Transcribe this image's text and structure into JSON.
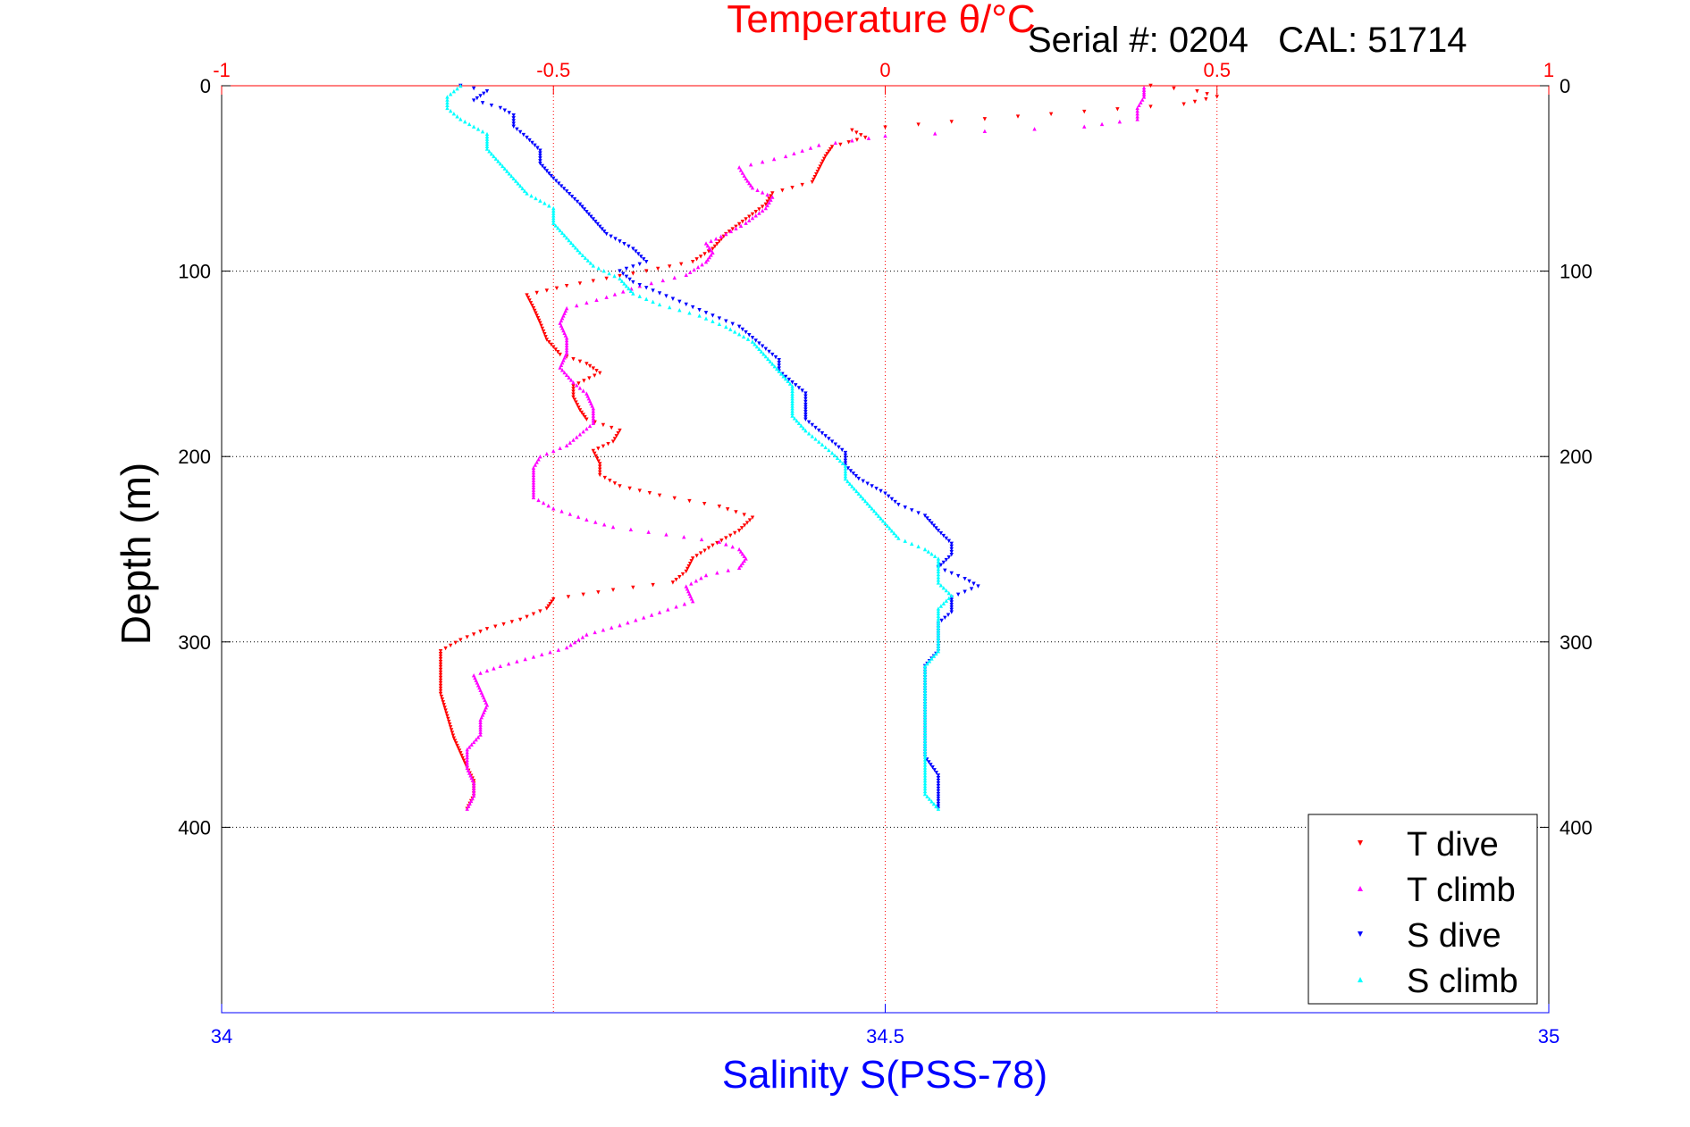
{
  "chart_data": {
    "type": "scatter",
    "title": "Temperature θ/°C",
    "header": "Serial #: 0204   CAL: 51714",
    "ylabel": "Depth (m)",
    "xlabel": "Salinity S(PSS-78)",
    "temperature_axis": {
      "position": "top",
      "range": [
        -1,
        1
      ],
      "ticks": [
        "-1",
        "-0.5",
        "0",
        "0.5",
        "1"
      ],
      "color": "#ff0000"
    },
    "salinity_axis": {
      "position": "bottom",
      "range": [
        34,
        35
      ],
      "ticks": [
        "34",
        "34.5",
        "35"
      ],
      "color": "#0000ff"
    },
    "depth_axis": {
      "range": [
        0,
        500
      ],
      "reversed": true,
      "ticks": [
        "0",
        "100",
        "200",
        "300",
        "400"
      ]
    },
    "grid": true,
    "legend_position": "bottom-right",
    "series": [
      {
        "name": "T dive",
        "axis": "temperature",
        "color": "#ff0000",
        "marker": "triangle-down",
        "points": [
          [
            0.4,
            0
          ],
          [
            0.47,
            3
          ],
          [
            0.5,
            6
          ],
          [
            0.45,
            10
          ],
          [
            0.3,
            14
          ],
          [
            0.15,
            18
          ],
          [
            0.05,
            21
          ],
          [
            -0.05,
            24
          ],
          [
            -0.03,
            28
          ],
          [
            -0.08,
            33
          ],
          [
            -0.09,
            38
          ],
          [
            -0.1,
            45
          ],
          [
            -0.11,
            52
          ],
          [
            -0.17,
            58
          ],
          [
            -0.18,
            64
          ],
          [
            -0.21,
            72
          ],
          [
            -0.24,
            80
          ],
          [
            -0.26,
            88
          ],
          [
            -0.29,
            95
          ],
          [
            -0.36,
            100
          ],
          [
            -0.42,
            104
          ],
          [
            -0.48,
            108
          ],
          [
            -0.54,
            113
          ],
          [
            -0.53,
            120
          ],
          [
            -0.52,
            128
          ],
          [
            -0.51,
            137
          ],
          [
            -0.49,
            145
          ],
          [
            -0.45,
            150
          ],
          [
            -0.43,
            155
          ],
          [
            -0.47,
            162
          ],
          [
            -0.47,
            168
          ],
          [
            -0.46,
            175
          ],
          [
            -0.45,
            180
          ],
          [
            -0.4,
            186
          ],
          [
            -0.41,
            192
          ],
          [
            -0.44,
            197
          ],
          [
            -0.43,
            204
          ],
          [
            -0.43,
            210
          ],
          [
            -0.4,
            216
          ],
          [
            -0.34,
            221
          ],
          [
            -0.25,
            227
          ],
          [
            -0.2,
            233
          ],
          [
            -0.22,
            240
          ],
          [
            -0.26,
            248
          ],
          [
            -0.29,
            255
          ],
          [
            -0.3,
            262
          ],
          [
            -0.32,
            268
          ],
          [
            -0.41,
            272
          ],
          [
            -0.5,
            277
          ],
          [
            -0.51,
            282
          ],
          [
            -0.55,
            288
          ],
          [
            -0.6,
            293
          ],
          [
            -0.64,
            299
          ],
          [
            -0.67,
            305
          ],
          [
            -0.67,
            315
          ],
          [
            -0.67,
            328
          ],
          [
            -0.66,
            340
          ],
          [
            -0.65,
            352
          ],
          [
            -0.64,
            360
          ],
          [
            -0.63,
            368
          ],
          [
            -0.62,
            375
          ],
          [
            -0.62,
            383
          ],
          [
            -0.63,
            390
          ]
        ]
      },
      {
        "name": "T climb",
        "axis": "temperature",
        "color": "#ff00ff",
        "marker": "triangle-up",
        "points": [
          [
            -0.63,
            390
          ],
          [
            -0.62,
            383
          ],
          [
            -0.62,
            376
          ],
          [
            -0.63,
            368
          ],
          [
            -0.63,
            358
          ],
          [
            -0.61,
            350
          ],
          [
            -0.61,
            342
          ],
          [
            -0.6,
            334
          ],
          [
            -0.61,
            326
          ],
          [
            -0.62,
            318
          ],
          [
            -0.58,
            313
          ],
          [
            -0.53,
            308
          ],
          [
            -0.48,
            303
          ],
          [
            -0.45,
            296
          ],
          [
            -0.4,
            291
          ],
          [
            -0.34,
            284
          ],
          [
            -0.29,
            278
          ],
          [
            -0.3,
            270
          ],
          [
            -0.27,
            264
          ],
          [
            -0.22,
            260
          ],
          [
            -0.21,
            255
          ],
          [
            -0.22,
            250
          ],
          [
            -0.25,
            246
          ],
          [
            -0.33,
            242
          ],
          [
            -0.41,
            238
          ],
          [
            -0.45,
            234
          ],
          [
            -0.5,
            228
          ],
          [
            -0.53,
            222
          ],
          [
            -0.53,
            214
          ],
          [
            -0.53,
            206
          ],
          [
            -0.52,
            200
          ],
          [
            -0.48,
            194
          ],
          [
            -0.46,
            188
          ],
          [
            -0.44,
            182
          ],
          [
            -0.44,
            174
          ],
          [
            -0.45,
            166
          ],
          [
            -0.47,
            160
          ],
          [
            -0.49,
            152
          ],
          [
            -0.48,
            144
          ],
          [
            -0.48,
            136
          ],
          [
            -0.49,
            128
          ],
          [
            -0.48,
            120
          ],
          [
            -0.42,
            114
          ],
          [
            -0.37,
            108
          ],
          [
            -0.3,
            102
          ],
          [
            -0.27,
            95
          ],
          [
            -0.26,
            90
          ],
          [
            -0.27,
            85
          ],
          [
            -0.24,
            80
          ],
          [
            -0.21,
            74
          ],
          [
            -0.18,
            66
          ],
          [
            -0.17,
            60
          ],
          [
            -0.2,
            55
          ],
          [
            -0.21,
            50
          ],
          [
            -0.22,
            44
          ],
          [
            -0.15,
            38
          ],
          [
            -0.1,
            32
          ],
          [
            0.0,
            27
          ],
          [
            0.3,
            22
          ],
          [
            0.38,
            18
          ],
          [
            0.38,
            12
          ],
          [
            0.39,
            6
          ],
          [
            0.39,
            1
          ]
        ]
      },
      {
        "name": "S dive",
        "axis": "salinity",
        "color": "#0000ff",
        "marker": "triangle-down",
        "points": [
          [
            34.18,
            0
          ],
          [
            34.2,
            3
          ],
          [
            34.19,
            8
          ],
          [
            34.21,
            12
          ],
          [
            34.22,
            16
          ],
          [
            34.22,
            22
          ],
          [
            34.23,
            28
          ],
          [
            34.24,
            35
          ],
          [
            34.24,
            42
          ],
          [
            34.25,
            50
          ],
          [
            34.26,
            57
          ],
          [
            34.27,
            64
          ],
          [
            34.28,
            72
          ],
          [
            34.29,
            80
          ],
          [
            34.31,
            88
          ],
          [
            34.32,
            95
          ],
          [
            34.3,
            100
          ],
          [
            34.31,
            106
          ],
          [
            34.33,
            112
          ],
          [
            34.35,
            118
          ],
          [
            34.37,
            124
          ],
          [
            34.39,
            130
          ],
          [
            34.4,
            136
          ],
          [
            34.41,
            142
          ],
          [
            34.42,
            148
          ],
          [
            34.42,
            154
          ],
          [
            34.43,
            160
          ],
          [
            34.44,
            166
          ],
          [
            34.44,
            172
          ],
          [
            34.44,
            180
          ],
          [
            34.45,
            186
          ],
          [
            34.46,
            192
          ],
          [
            34.47,
            198
          ],
          [
            34.47,
            205
          ],
          [
            34.48,
            212
          ],
          [
            34.5,
            220
          ],
          [
            34.51,
            226
          ],
          [
            34.53,
            232
          ],
          [
            34.54,
            240
          ],
          [
            34.55,
            247
          ],
          [
            34.55,
            253
          ],
          [
            34.54,
            260
          ],
          [
            34.56,
            266
          ],
          [
            34.57,
            270
          ],
          [
            34.55,
            276
          ],
          [
            34.55,
            284
          ],
          [
            34.54,
            290
          ],
          [
            34.54,
            298
          ],
          [
            34.54,
            305
          ],
          [
            34.53,
            313
          ],
          [
            34.53,
            322
          ],
          [
            34.53,
            332
          ],
          [
            34.53,
            342
          ],
          [
            34.53,
            352
          ],
          [
            34.53,
            362
          ],
          [
            34.54,
            372
          ],
          [
            34.54,
            382
          ],
          [
            34.54,
            390
          ]
        ]
      },
      {
        "name": "S climb",
        "axis": "salinity",
        "color": "#00ffff",
        "marker": "triangle-up",
        "points": [
          [
            34.54,
            390
          ],
          [
            34.53,
            382
          ],
          [
            34.53,
            372
          ],
          [
            34.53,
            362
          ],
          [
            34.53,
            352
          ],
          [
            34.53,
            342
          ],
          [
            34.53,
            332
          ],
          [
            34.53,
            322
          ],
          [
            34.53,
            313
          ],
          [
            34.54,
            305
          ],
          [
            34.54,
            298
          ],
          [
            34.54,
            290
          ],
          [
            34.54,
            282
          ],
          [
            34.55,
            275
          ],
          [
            34.54,
            268
          ],
          [
            34.54,
            262
          ],
          [
            34.54,
            255
          ],
          [
            34.53,
            250
          ],
          [
            34.51,
            244
          ],
          [
            34.5,
            236
          ],
          [
            34.49,
            228
          ],
          [
            34.48,
            220
          ],
          [
            34.47,
            212
          ],
          [
            34.47,
            205
          ],
          [
            34.46,
            198
          ],
          [
            34.45,
            192
          ],
          [
            34.44,
            186
          ],
          [
            34.43,
            178
          ],
          [
            34.43,
            170
          ],
          [
            34.43,
            162
          ],
          [
            34.42,
            154
          ],
          [
            34.41,
            146
          ],
          [
            34.4,
            138
          ],
          [
            34.38,
            130
          ],
          [
            34.36,
            124
          ],
          [
            34.33,
            118
          ],
          [
            34.31,
            112
          ],
          [
            34.3,
            104
          ],
          [
            34.28,
            97
          ],
          [
            34.27,
            90
          ],
          [
            34.26,
            82
          ],
          [
            34.25,
            74
          ],
          [
            34.25,
            66
          ],
          [
            34.23,
            58
          ],
          [
            34.22,
            50
          ],
          [
            34.21,
            42
          ],
          [
            34.2,
            34
          ],
          [
            34.2,
            26
          ],
          [
            34.18,
            18
          ],
          [
            34.17,
            12
          ],
          [
            34.17,
            6
          ],
          [
            34.18,
            0
          ]
        ]
      }
    ]
  }
}
